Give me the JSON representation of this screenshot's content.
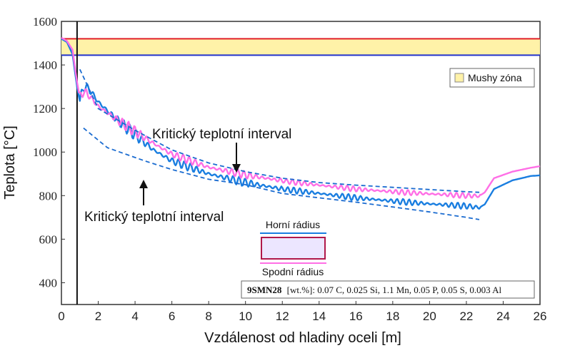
{
  "chart_data": {
    "type": "line",
    "xlabel": "Vzdálenost od hladiny oceli [m]",
    "ylabel": "Teplota [°C]",
    "xlim": [
      0,
      26
    ],
    "ylim": [
      300,
      1600
    ],
    "x_ticks": [
      0,
      2,
      4,
      6,
      8,
      10,
      12,
      14,
      16,
      18,
      20,
      22,
      24,
      26
    ],
    "y_ticks": [
      400,
      600,
      800,
      1000,
      1200,
      1400,
      1600
    ],
    "mushy_zone": {
      "label": "Mushy zóna",
      "liquidus": 1520,
      "solidus": 1445,
      "fill": "#fff2a8",
      "liquidus_color": "#e0202a",
      "solidus_color": "#2233cc"
    },
    "vertical_marker_x": 0.85,
    "series": [
      {
        "name": "Horní rádius",
        "color": "#1a7ee0",
        "x": [
          0,
          0.3,
          0.6,
          0.85,
          1.0,
          1.2,
          1.5,
          2.0,
          3.0,
          4.0,
          5.0,
          6.0,
          8.0,
          10.0,
          12.0,
          14.0,
          16.0,
          18.0,
          20.0,
          22.0,
          22.7,
          23.0,
          23.5,
          24.5,
          25.5,
          26.0
        ],
        "y": [
          1520,
          1505,
          1450,
          1300,
          1230,
          1300,
          1290,
          1230,
          1150,
          1080,
          1010,
          960,
          900,
          860,
          830,
          810,
          790,
          775,
          762,
          752,
          745,
          760,
          830,
          870,
          890,
          893
        ]
      },
      {
        "name": "Spodní rádius",
        "color": "#ff6fe6",
        "x": [
          0,
          0.3,
          0.6,
          0.85,
          1.0,
          1.2,
          1.5,
          2.0,
          3.0,
          4.0,
          5.0,
          6.0,
          8.0,
          10.0,
          12.0,
          14.0,
          16.0,
          18.0,
          20.0,
          22.0,
          22.7,
          23.0,
          23.5,
          24.5,
          25.5,
          26.0
        ],
        "y": [
          1525,
          1510,
          1470,
          1320,
          1250,
          1280,
          1260,
          1210,
          1150,
          1095,
          1040,
          990,
          930,
          895,
          868,
          848,
          830,
          818,
          808,
          800,
          798,
          815,
          880,
          910,
          928,
          935
        ]
      }
    ],
    "critical_upper": {
      "x": [
        1.0,
        2,
        4,
        6,
        8,
        10,
        12,
        14,
        16,
        18,
        20,
        22,
        22.7
      ],
      "y": [
        1380,
        1200,
        1100,
        1010,
        950,
        910,
        880,
        860,
        848,
        838,
        828,
        818,
        815
      ]
    },
    "critical_lower": {
      "x": [
        1.2,
        2.5,
        4.5,
        6,
        8,
        10,
        12,
        14,
        16,
        18,
        20,
        22,
        22.7
      ],
      "y": [
        1110,
        1020,
        960,
        920,
        875,
        850,
        810,
        790,
        770,
        748,
        725,
        700,
        690
      ]
    },
    "annotations": [
      {
        "text": "Kritický teplotní interval",
        "pos": "upper"
      },
      {
        "text": "Kritický teplotní interval",
        "pos": "lower"
      }
    ],
    "legend_box": {
      "top_label": "Horní rádius",
      "bottom_label": "Spodní rádius"
    },
    "composition": {
      "grade": "9SMN28",
      "detail": "[wt.%]: 0.07 C, 0.025 Si, 1.1 Mn, 0.05 P, 0.05 S, 0.003 Al"
    }
  }
}
